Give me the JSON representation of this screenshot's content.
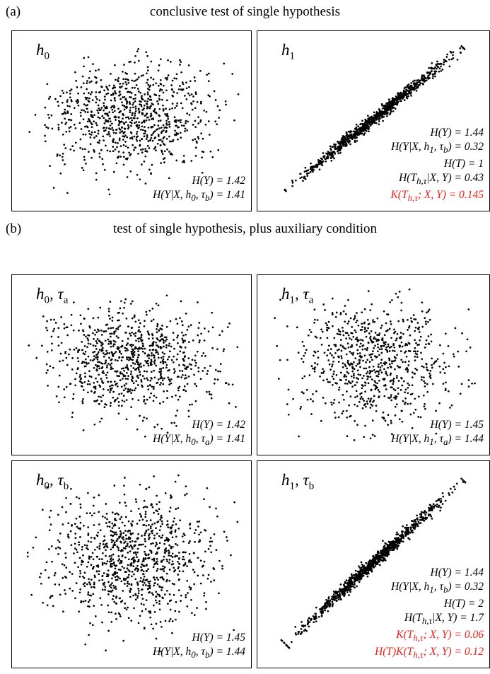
{
  "section_a": {
    "label": "(a)",
    "title": "conclusive test of single hypothesis"
  },
  "section_b": {
    "label": "(b)",
    "title": "test of single hypothesis, plus auxiliary condition"
  },
  "colors": {
    "points": "#000000",
    "highlight": "#e8231a"
  },
  "chart_data": [
    {
      "type": "scatter",
      "panel": "h0",
      "label": "h0",
      "pattern": "cloud",
      "n_points": 900,
      "y_spread": 1.0,
      "annotations": [
        "H(Y) = 1.42",
        "H(Y|X, h0, τb) = 1.41"
      ],
      "highlighted_annotations": []
    },
    {
      "type": "scatter",
      "panel": "h1",
      "label": "h1",
      "pattern": "line",
      "n_points": 900,
      "annotations": [
        "H(Y) = 1.44",
        "H(Y|X, h1, τb) = 0.32",
        "H(T) = 1",
        "H(Th,τ|X, Y) = 0.43",
        "K(Th,τ; X, Y) = 0.145"
      ],
      "highlighted_annotations": [
        4
      ]
    },
    {
      "type": "scatter",
      "panel": "h0-ta",
      "label": "h0, τa",
      "pattern": "cloud",
      "n_points": 900,
      "y_spread": 1.0,
      "annotations": [
        "H(Y) = 1.42",
        "H(Y|X, h0, τa) = 1.41"
      ],
      "highlighted_annotations": []
    },
    {
      "type": "scatter",
      "panel": "h1-ta",
      "label": "h1, τa",
      "pattern": "cloud",
      "n_points": 800,
      "y_spread": 1.25,
      "annotations": [
        "H(Y) = 1.45",
        "H(Y|X, h1, τa) = 1.44"
      ],
      "highlighted_annotations": []
    },
    {
      "type": "scatter",
      "panel": "h0-tb",
      "label": "h0, τb",
      "pattern": "cloud",
      "n_points": 1000,
      "y_spread": 1.1,
      "annotations": [
        "H(Y) = 1.45",
        "H(Y|X, h0, τb) = 1.44"
      ],
      "highlighted_annotations": []
    },
    {
      "type": "scatter",
      "panel": "h1-tb",
      "label": "h1, τb",
      "pattern": "line",
      "n_points": 1000,
      "annotations": [
        "H(Y) = 1.44",
        "H(Y|X, h1, τb) = 0.32",
        "H(T) = 2",
        "H(Th,τ|X, Y) = 1.7",
        "K(Th,τ; X, Y) = 0.06",
        "H(T)K(Th,τ; X, Y) = 0.12"
      ],
      "highlighted_annotations": [
        4,
        5
      ]
    }
  ]
}
